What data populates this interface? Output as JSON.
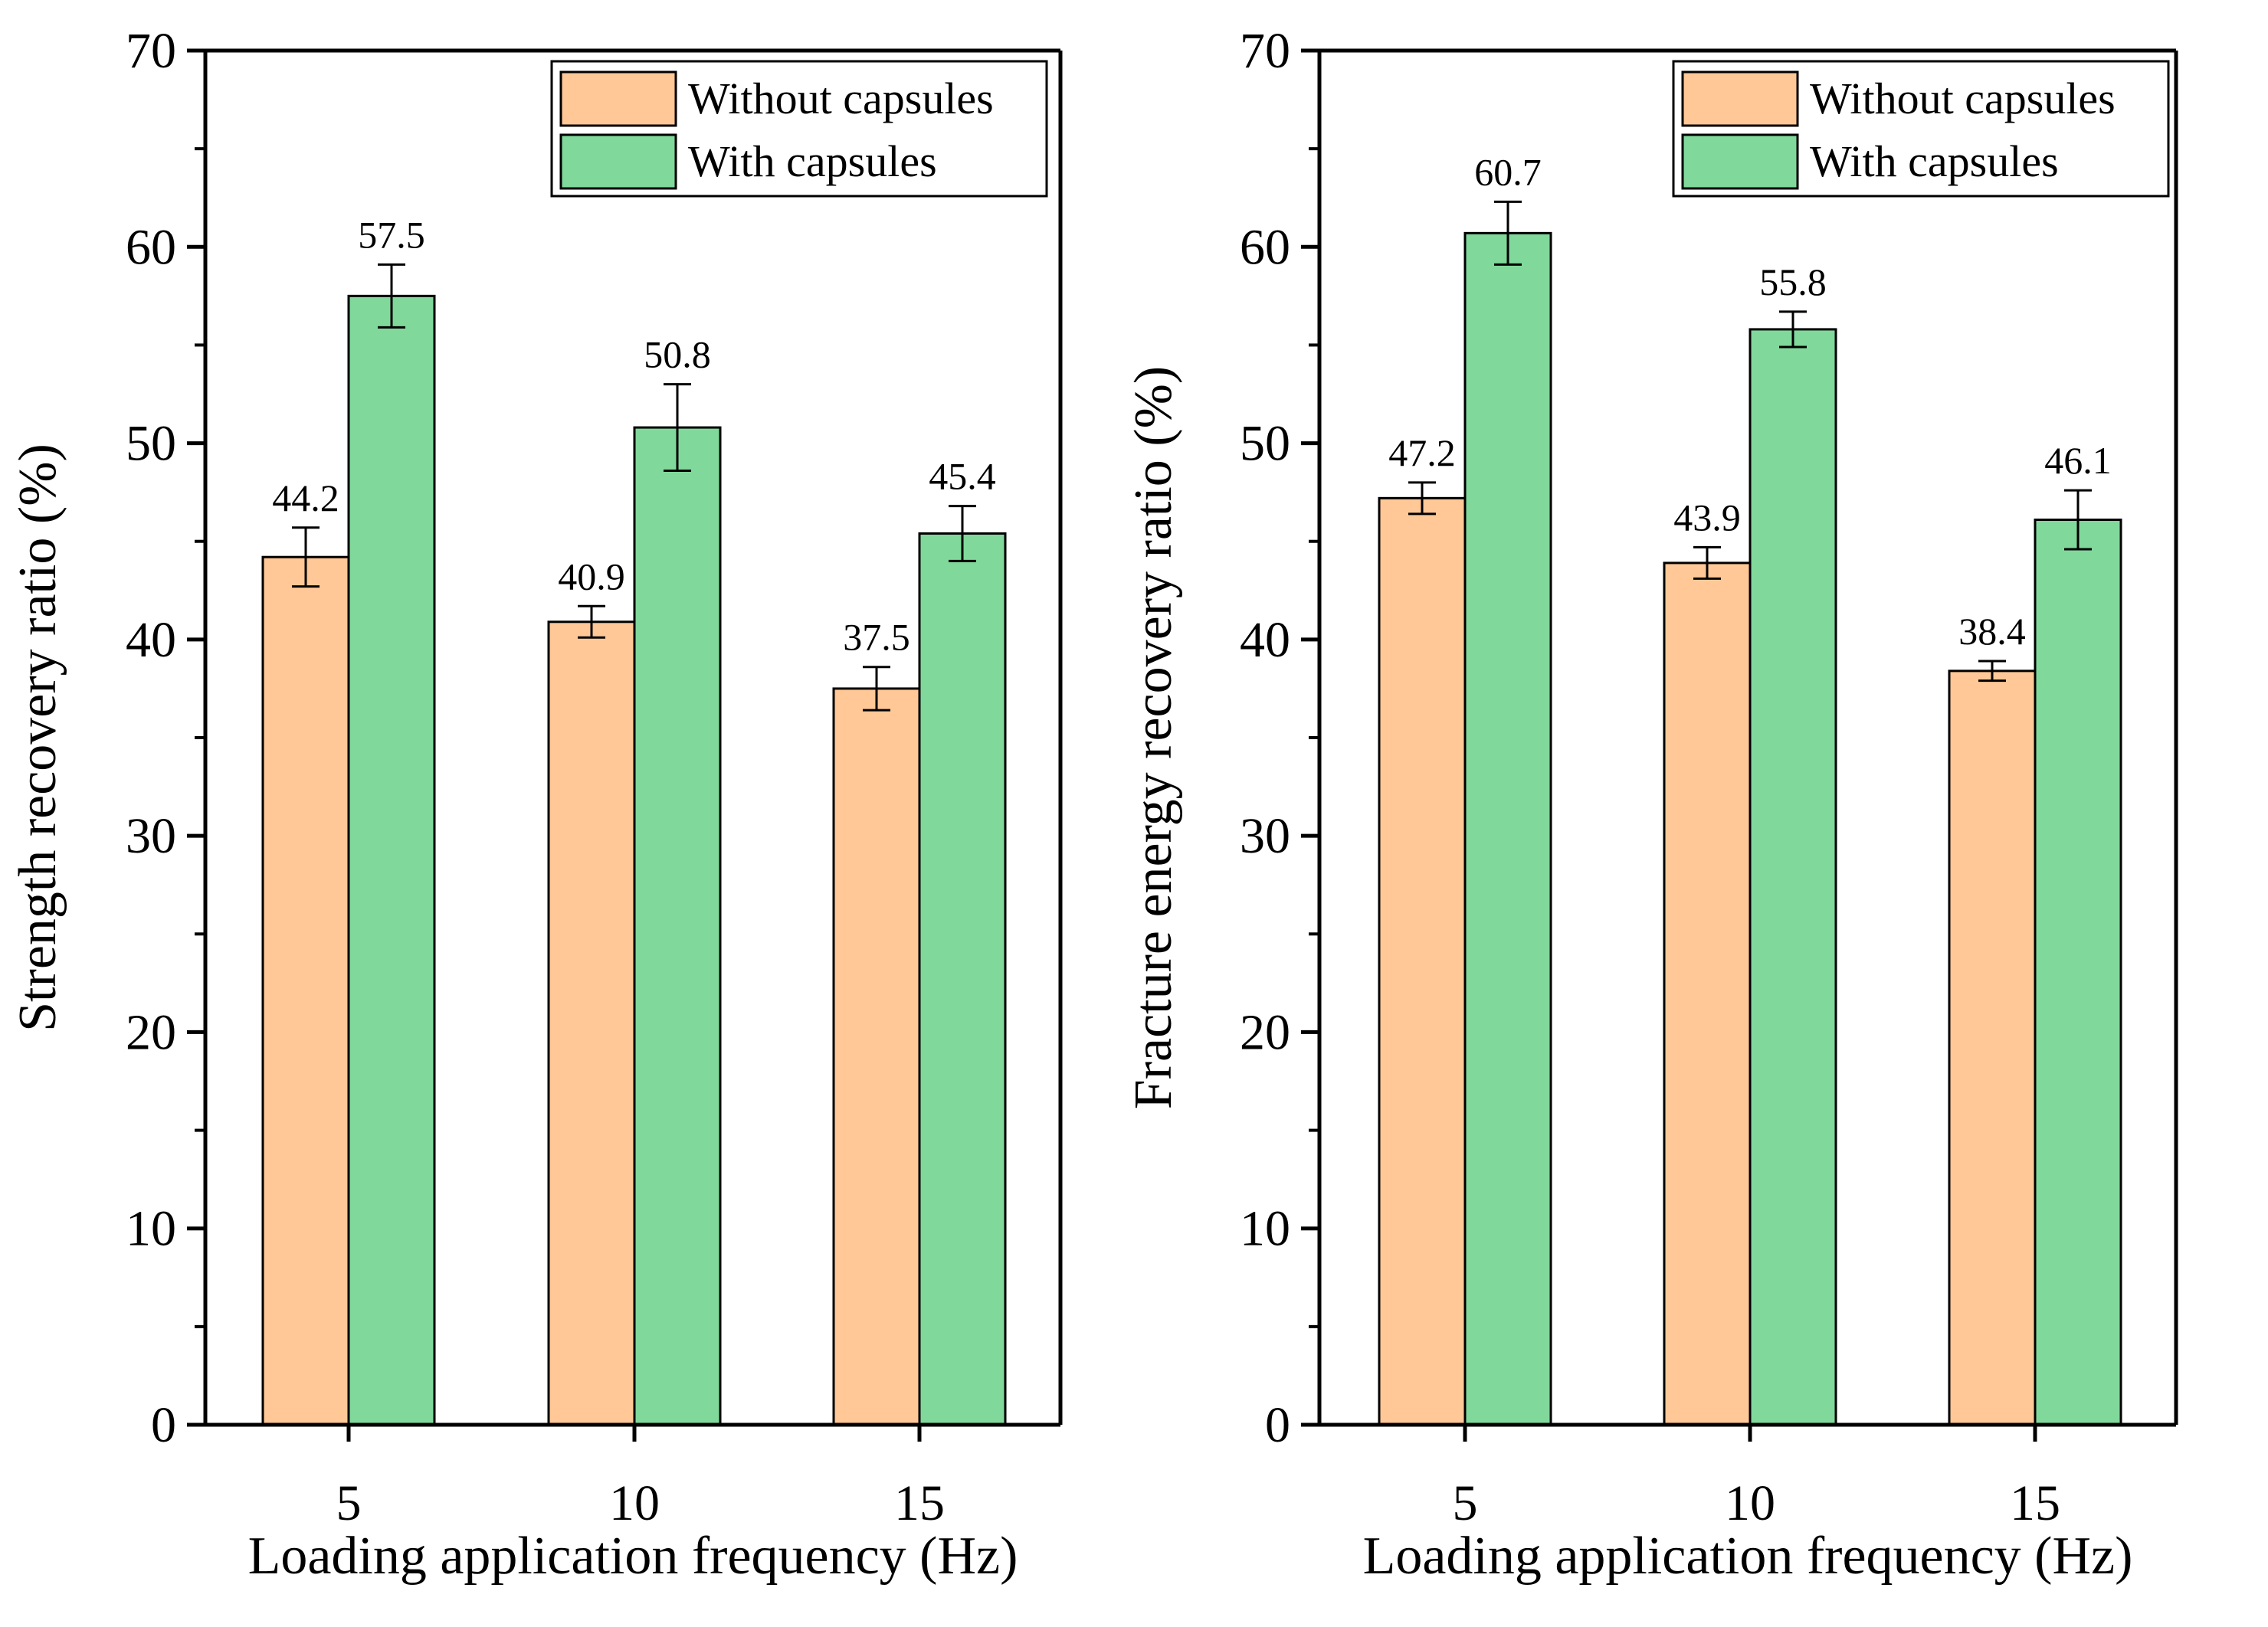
{
  "chart_data": [
    {
      "type": "bar",
      "title": "",
      "xlabel": "Loading application frequency (Hz)",
      "ylabel": "Strength recovery ratio (%)",
      "categories": [
        "5",
        "10",
        "15"
      ],
      "ylim": [
        0,
        70
      ],
      "yticks": [
        "0",
        "10",
        "20",
        "30",
        "40",
        "50",
        "60",
        "70"
      ],
      "legend_position": "top-right",
      "grid": false,
      "series": [
        {
          "name": "Without capsules",
          "color": "#FFC896",
          "values": [
            44.2,
            40.9,
            37.5
          ],
          "labels": [
            "44.2",
            "40.9",
            "37.5"
          ],
          "errors": [
            1.5,
            0.8,
            1.1
          ]
        },
        {
          "name": "With capsules",
          "color": "#80D99B",
          "values": [
            57.5,
            50.8,
            45.4
          ],
          "labels": [
            "57.5",
            "50.8",
            "45.4"
          ],
          "errors": [
            1.6,
            2.2,
            1.4
          ]
        }
      ]
    },
    {
      "type": "bar",
      "title": "",
      "xlabel": "Loading application frequency (Hz)",
      "ylabel": "Fracture energy recovery ratio (%)",
      "categories": [
        "5",
        "10",
        "15"
      ],
      "ylim": [
        0,
        70
      ],
      "yticks": [
        "0",
        "10",
        "20",
        "30",
        "40",
        "50",
        "60",
        "70"
      ],
      "legend_position": "top-right",
      "grid": false,
      "series": [
        {
          "name": "Without capsules",
          "color": "#FFC896",
          "values": [
            47.2,
            43.9,
            38.4
          ],
          "labels": [
            "47.2",
            "43.9",
            "38.4"
          ],
          "errors": [
            0.8,
            0.8,
            0.5
          ]
        },
        {
          "name": "With capsules",
          "color": "#80D99B",
          "values": [
            60.7,
            55.8,
            46.1
          ],
          "labels": [
            "60.7",
            "55.8",
            "46.1"
          ],
          "errors": [
            1.6,
            0.9,
            1.5
          ]
        }
      ]
    }
  ]
}
